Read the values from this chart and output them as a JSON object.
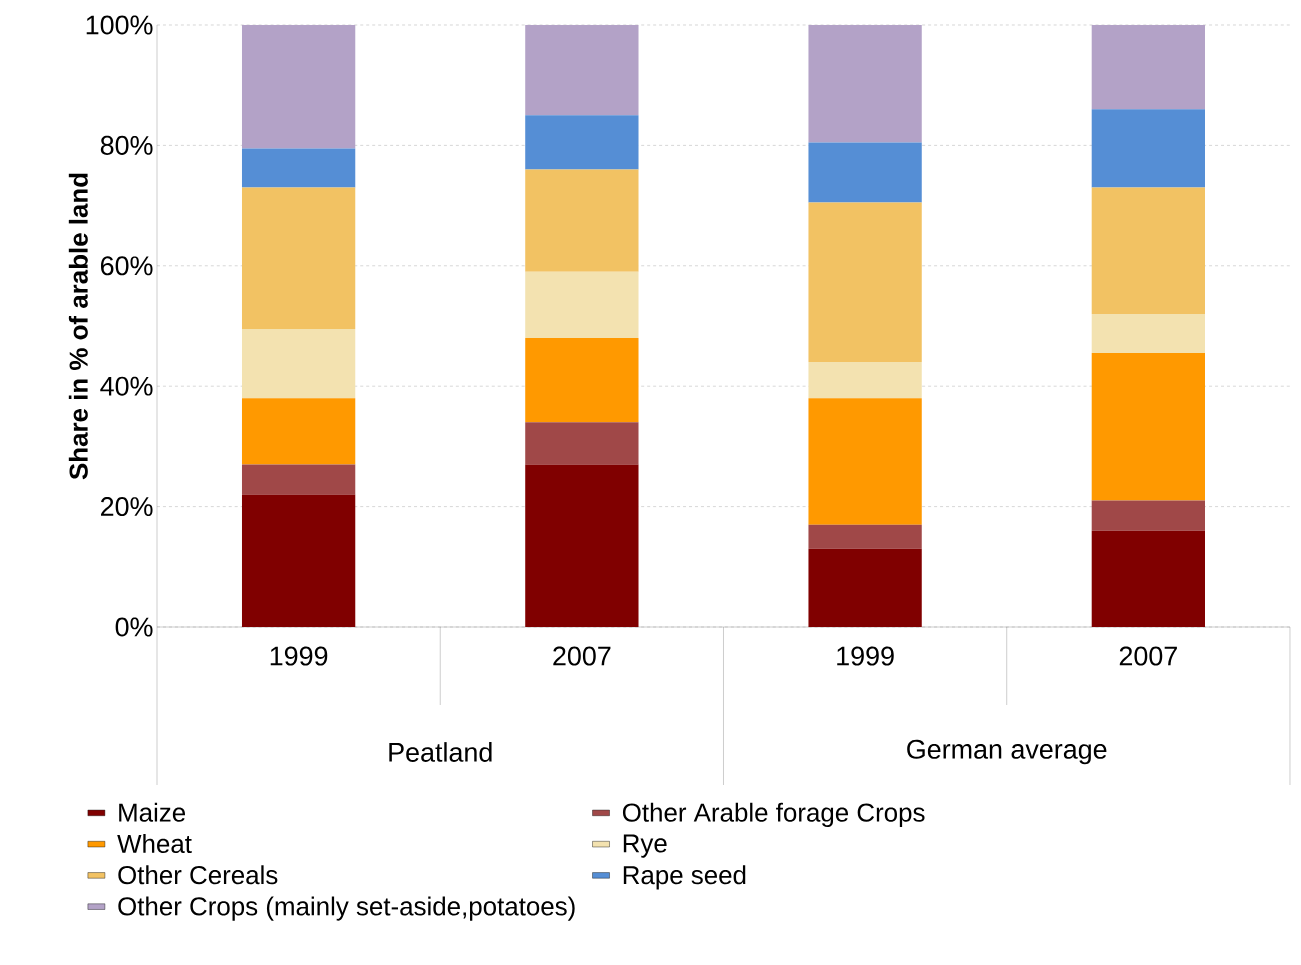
{
  "chart_data": {
    "type": "bar",
    "stacked": true,
    "ylabel": "Share in % of arable land",
    "categories": [
      "1999",
      "2007",
      "1999",
      "2007"
    ],
    "annotations": [
      "Peatland",
      "German average"
    ],
    "series": [
      {
        "name": "Maize",
        "color": "#800000",
        "values": [
          22,
          27,
          13,
          16
        ]
      },
      {
        "name": "Other Arable forage Crops",
        "color": "#a04848",
        "values": [
          5,
          7,
          4,
          5
        ]
      },
      {
        "name": "Wheat",
        "color": "#ff9900",
        "values": [
          11,
          14,
          21,
          24.5
        ]
      },
      {
        "name": "Rye",
        "color": "#f3e2b0",
        "values": [
          11.5,
          11,
          6,
          6.5
        ]
      },
      {
        "name": "Other Cereals",
        "color": "#f2c263",
        "values": [
          23.5,
          17,
          26.5,
          21
        ]
      },
      {
        "name": "Rape seed",
        "color": "#558ed5",
        "values": [
          6.5,
          9,
          10,
          13
        ]
      },
      {
        "name": "Other Crops (mainly set-aside,potatoes)",
        "color": "#b3a2c7",
        "values": [
          20.5,
          15,
          19.5,
          14
        ]
      }
    ],
    "ylim": [
      0,
      100
    ],
    "yticks": [
      {
        "value": 0,
        "label": "0%"
      },
      {
        "value": 20,
        "label": "20%"
      },
      {
        "value": 40,
        "label": "40%"
      },
      {
        "value": 60,
        "label": "60%"
      },
      {
        "value": 80,
        "label": "80%"
      },
      {
        "value": 100,
        "label": "100%"
      }
    ],
    "grid": "y",
    "legend": "bottom"
  }
}
